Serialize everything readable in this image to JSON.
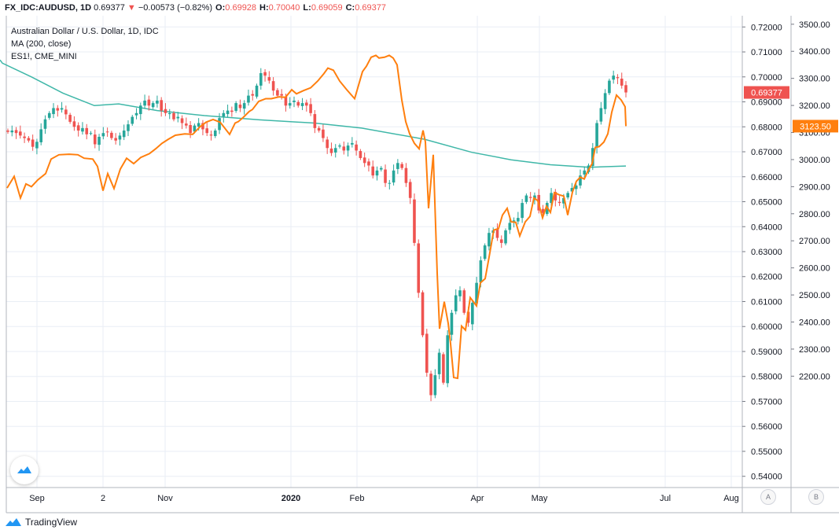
{
  "header": {
    "symbol": "FX_IDC:AUDUSD, 1D",
    "last": "0.69377",
    "arrow": "▼",
    "change": "−0.00573 (−0.82%)",
    "o_label": "O:",
    "o": "0.69928",
    "h_label": "H:",
    "h": "0.70040",
    "l_label": "L:",
    "l": "0.69059",
    "c_label": "C:",
    "c": "0.69377"
  },
  "legend": {
    "main": "Australian Dollar / U.S. Dollar, 1D, IDC",
    "ma": "MA (200, close)",
    "compare": "ES1!, CME_MINI"
  },
  "footer": {
    "brand": "TradingView"
  },
  "scale_buttons": {
    "a": "A",
    "b": "B"
  },
  "colors": {
    "up": "#26a69a",
    "down": "#ef5350",
    "ma": "#3fb7a8",
    "compare": "#ff7f0e",
    "grid": "#e9eef5",
    "price_tag": "#ef5350",
    "compare_tag": "#ff7f0e",
    "brand_icon": "#2196f3"
  },
  "icons": {
    "brand": "tradingview-logo-icon"
  },
  "chart_data": {
    "type": "candlestick+line",
    "x_ticks": [
      "Sep",
      "2",
      "Nov",
      "2020",
      "Feb",
      "Apr",
      "May",
      "Jul",
      "Aug"
    ],
    "y_left": {
      "min": 0.5355,
      "max": 0.7245,
      "ticks": [
        "0.72000",
        "0.71000",
        "0.70000",
        "0.69000",
        "0.68000",
        "0.67000",
        "0.66000",
        "0.65000",
        "0.64000",
        "0.63000",
        "0.62000",
        "0.61000",
        "0.60000",
        "0.59000",
        "0.58000",
        "0.57000",
        "0.56000",
        "0.55000",
        "0.54000"
      ]
    },
    "y_right": {
      "min": 1788.6,
      "max": 3531.4,
      "ticks": [
        "3500.00",
        "3400.00",
        "3300.00",
        "3200.00",
        "3100.00",
        "3000.00",
        "2900.00",
        "2800.00",
        "2700.00",
        "2600.00",
        "2500.00",
        "2400.00",
        "2300.00",
        "2200.00"
      ]
    },
    "last_price_label": "0.69377",
    "compare_last_label": "3123.50",
    "candles_close": [
      0.678,
      0.6785,
      0.6775,
      0.6765,
      0.6755,
      0.6745,
      0.672,
      0.674,
      0.679,
      0.683,
      0.6855,
      0.6875,
      0.6865,
      0.6875,
      0.685,
      0.682,
      0.68,
      0.6785,
      0.6795,
      0.677,
      0.6775,
      0.673,
      0.676,
      0.6775,
      0.678,
      0.6755,
      0.6745,
      0.6765,
      0.6785,
      0.681,
      0.684,
      0.6855,
      0.6885,
      0.6905,
      0.6885,
      0.6895,
      0.6905,
      0.6865,
      0.6855,
      0.6855,
      0.683,
      0.684,
      0.6815,
      0.6805,
      0.6775,
      0.6805,
      0.6815,
      0.679,
      0.6775,
      0.6765,
      0.6785,
      0.6835,
      0.6855,
      0.6865,
      0.686,
      0.6895,
      0.6875,
      0.6895,
      0.6925,
      0.6925,
      0.6965,
      0.7015,
      0.7005,
      0.6985,
      0.6945,
      0.6925,
      0.6925,
      0.6885,
      0.6895,
      0.6905,
      0.6885,
      0.6895,
      0.6885,
      0.6855,
      0.6795,
      0.6785,
      0.6755,
      0.6715,
      0.6695,
      0.6715,
      0.6725,
      0.6705,
      0.6725,
      0.6735,
      0.6705,
      0.6675,
      0.6655,
      0.6645,
      0.6605,
      0.6625,
      0.6635,
      0.6575,
      0.6575,
      0.6625,
      0.6655,
      0.6635,
      0.6575,
      0.6515,
      0.6335,
      0.6135,
      0.5965,
      0.5815,
      0.5725,
      0.5805,
      0.5895,
      0.5775,
      0.5965,
      0.6055,
      0.6125,
      0.6145,
      0.6055,
      0.6015,
      0.6095,
      0.6175,
      0.6265,
      0.6325,
      0.6375,
      0.6385,
      0.6355,
      0.6335,
      0.6385,
      0.6415,
      0.6425,
      0.6435,
      0.6495,
      0.6525,
      0.6515,
      0.6525,
      0.6465,
      0.6455,
      0.6495,
      0.6535,
      0.6505,
      0.6495,
      0.6515,
      0.6535,
      0.6555,
      0.6565,
      0.6605,
      0.6625,
      0.6645,
      0.6715,
      0.6815,
      0.6875,
      0.6935,
      0.6985,
      0.7005,
      0.6995,
      0.6965,
      0.69377
    ],
    "ma200": [
      [
        0,
        0.7068
      ],
      [
        3,
        0.7055
      ],
      [
        40,
        0.7
      ],
      [
        80,
        0.6935
      ],
      [
        120,
        0.6885
      ],
      [
        151,
        0.6892
      ],
      [
        200,
        0.6865
      ],
      [
        260,
        0.6845
      ],
      [
        330,
        0.6828
      ],
      [
        400,
        0.6815
      ],
      [
        460,
        0.6795
      ],
      [
        540,
        0.675
      ],
      [
        600,
        0.6698
      ],
      [
        650,
        0.6668
      ],
      [
        700,
        0.6648
      ],
      [
        750,
        0.6638
      ],
      [
        796,
        0.6643
      ]
    ],
    "es1": [
      [
        9,
        2895
      ],
      [
        18,
        2938
      ],
      [
        26,
        2858
      ],
      [
        33,
        2910
      ],
      [
        40,
        2900
      ],
      [
        48,
        2925
      ],
      [
        58,
        2948
      ],
      [
        65,
        3002
      ],
      [
        75,
        3018
      ],
      [
        88,
        3020
      ],
      [
        99,
        3018
      ],
      [
        107,
        3005
      ],
      [
        118,
        3002
      ],
      [
        124,
        2975
      ],
      [
        131,
        2885
      ],
      [
        137,
        2948
      ],
      [
        145,
        2893
      ],
      [
        153,
        2965
      ],
      [
        161,
        3005
      ],
      [
        170,
        2985
      ],
      [
        179,
        3008
      ],
      [
        190,
        3022
      ],
      [
        198,
        3040
      ],
      [
        206,
        3060
      ],
      [
        214,
        3075
      ],
      [
        223,
        3090
      ],
      [
        235,
        3095
      ],
      [
        245,
        3093
      ],
      [
        254,
        3120
      ],
      [
        262,
        3138
      ],
      [
        271,
        3148
      ],
      [
        280,
        3138
      ],
      [
        292,
        3093
      ],
      [
        299,
        3135
      ],
      [
        303,
        3140
      ],
      [
        309,
        3155
      ],
      [
        317,
        3178
      ],
      [
        321,
        3185
      ],
      [
        329,
        3215
      ],
      [
        338,
        3225
      ],
      [
        345,
        3225
      ],
      [
        355,
        3232
      ],
      [
        363,
        3230
      ],
      [
        371,
        3258
      ],
      [
        377,
        3243
      ],
      [
        386,
        3255
      ],
      [
        395,
        3265
      ],
      [
        404,
        3290
      ],
      [
        412,
        3318
      ],
      [
        417,
        3338
      ],
      [
        424,
        3330
      ],
      [
        432,
        3290
      ],
      [
        441,
        3258
      ],
      [
        451,
        3225
      ],
      [
        456,
        3275
      ],
      [
        461,
        3325
      ],
      [
        466,
        3345
      ],
      [
        472,
        3378
      ],
      [
        478,
        3385
      ],
      [
        482,
        3375
      ],
      [
        489,
        3378
      ],
      [
        495,
        3385
      ],
      [
        500,
        3375
      ],
      [
        505,
        3350
      ],
      [
        511,
        3220
      ],
      [
        516,
        3140
      ],
      [
        521,
        3095
      ],
      [
        527,
        3060
      ],
      [
        533,
        3040
      ],
      [
        538,
        3108
      ],
      [
        541,
        3065
      ],
      [
        545,
        2820
      ],
      [
        551,
        3018
      ],
      [
        556,
        2580
      ],
      [
        559,
        2375
      ],
      [
        565,
        2475
      ],
      [
        570,
        2395
      ],
      [
        573,
        2320
      ],
      [
        577,
        2195
      ],
      [
        582,
        2192
      ],
      [
        587,
        2385
      ],
      [
        592,
        2370
      ],
      [
        598,
        2490
      ],
      [
        606,
        2460
      ],
      [
        611,
        2545
      ],
      [
        617,
        2560
      ],
      [
        622,
        2640
      ],
      [
        628,
        2740
      ],
      [
        634,
        2745
      ],
      [
        639,
        2795
      ],
      [
        645,
        2820
      ],
      [
        650,
        2770
      ],
      [
        656,
        2768
      ],
      [
        661,
        2718
      ],
      [
        668,
        2770
      ],
      [
        674,
        2790
      ],
      [
        679,
        2858
      ],
      [
        684,
        2848
      ],
      [
        690,
        2785
      ],
      [
        695,
        2828
      ],
      [
        700,
        2805
      ],
      [
        705,
        2878
      ],
      [
        711,
        2870
      ],
      [
        717,
        2865
      ],
      [
        722,
        2795
      ],
      [
        728,
        2880
      ],
      [
        733,
        2920
      ],
      [
        738,
        2935
      ],
      [
        743,
        2928
      ],
      [
        748,
        2960
      ],
      [
        753,
        2985
      ],
      [
        757,
        3045
      ],
      [
        762,
        3048
      ],
      [
        768,
        3065
      ],
      [
        773,
        3095
      ],
      [
        778,
        3175
      ],
      [
        784,
        3238
      ],
      [
        790,
        3220
      ],
      [
        795,
        3195
      ],
      [
        796,
        3123.5
      ]
    ]
  }
}
